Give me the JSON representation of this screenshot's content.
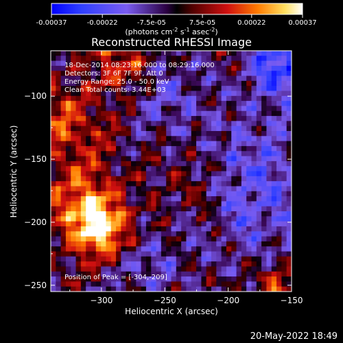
{
  "colorbar": {
    "ticks": [
      "-0.00037",
      "-0.00022",
      "-7.5e-05",
      "7.5e-05",
      "0.00022",
      "0.00037"
    ],
    "units_prefix": "(photons cm",
    "units_sup1": "-2",
    "units_mid": " s",
    "units_sup2": "-1",
    "units_mid2": " asec",
    "units_sup3": "-2",
    "units_suffix": ")",
    "range": [
      -0.00037,
      0.00037
    ]
  },
  "chart_data": {
    "type": "heatmap",
    "title": "Reconstructed RHESSI Image",
    "xlabel": "Heliocentric X (arcsec)",
    "ylabel": "Heliocentric Y (arcsec)",
    "xlim": [
      -340,
      -150
    ],
    "ylim": [
      -255,
      -64
    ],
    "xticks": [
      -300,
      -250,
      -200,
      -150
    ],
    "yticks": [
      -100,
      -150,
      -200,
      -250
    ],
    "annotations": [
      "18-Dec-2014 08:23:16.000 to 08:29:16.000",
      "Detectors: 3F 6F 7F 9F, Att 0",
      "Energy Range: 25.0 - 50.0 keV",
      "Clean     Total counts: 3.44E+03"
    ],
    "peak_label": "Position of Peak = [-304,-209]",
    "peak": {
      "x": -304,
      "y": -209
    }
  },
  "footer": {
    "date": "20-May-2022 18:49"
  }
}
